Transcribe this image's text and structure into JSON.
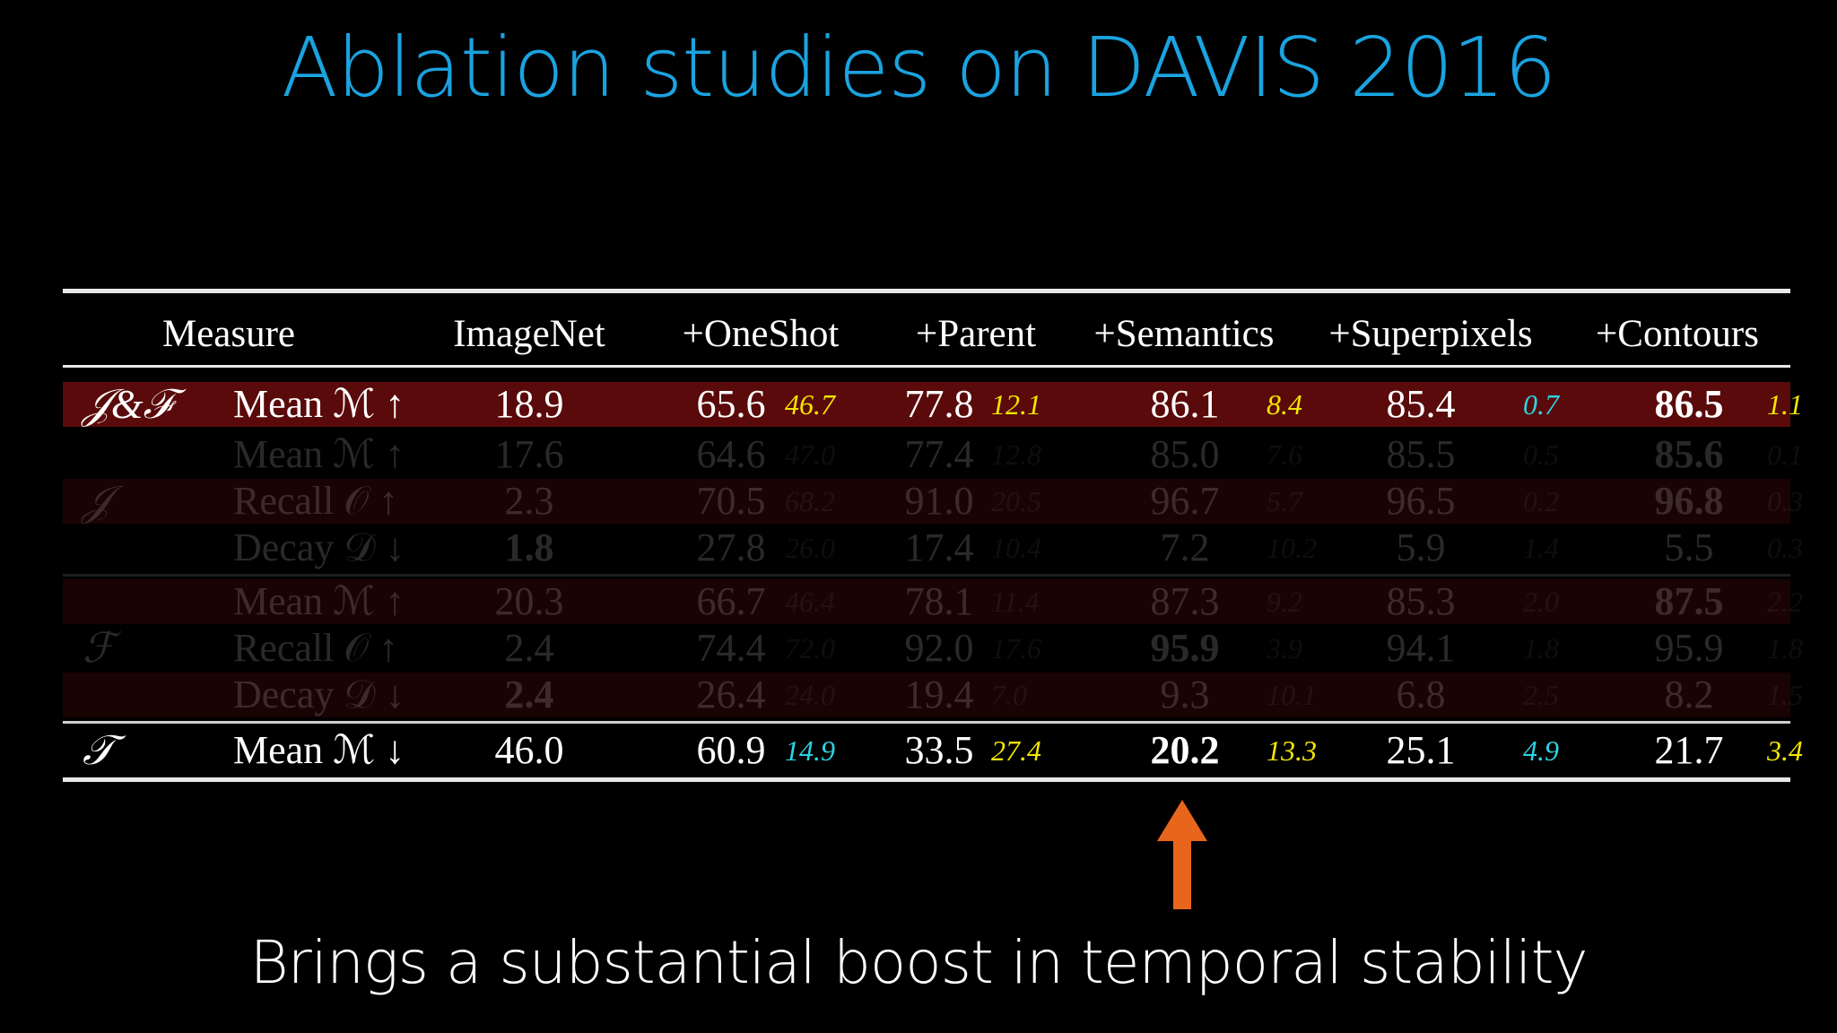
{
  "title": "Ablation studies on DAVIS 2016",
  "caption": "Brings a substantial boost in temporal stability",
  "colors": {
    "title": "#1aa3e0",
    "highlight_row": "#5a0a0a",
    "diff_yellow": "#f2e600",
    "diff_cyan": "#2bd4e4",
    "arrow": "#e8661c"
  },
  "icons": {
    "pointer": "up-arrow-icon"
  },
  "table": {
    "header": {
      "measure": "Measure",
      "columns": [
        "ImageNet",
        "+OneShot",
        "+Parent",
        "+Semantics",
        "+Superpixels",
        "+Contours"
      ]
    },
    "rows": [
      {
        "group": "𝒥&ℱ",
        "measure": "Mean ℳ ↑",
        "values": [
          "18.9",
          "65.6",
          "77.8",
          "86.1",
          "85.4",
          "86.5"
        ],
        "diffs": [
          "",
          "46.7",
          "12.1",
          "8.4",
          "0.7",
          "1.1"
        ]
      },
      {
        "group": "",
        "measure": "Mean ℳ ↑",
        "values": [
          "17.6",
          "64.6",
          "77.4",
          "85.0",
          "85.5",
          "85.6"
        ],
        "diffs": [
          "",
          "47.0",
          "12.8",
          "7.6",
          "0.5",
          "0.1"
        ]
      },
      {
        "group": "𝒥",
        "measure": "Recall 𝒪 ↑",
        "values": [
          "2.3",
          "70.5",
          "91.0",
          "96.7",
          "96.5",
          "96.8"
        ],
        "diffs": [
          "",
          "68.2",
          "20.5",
          "5.7",
          "0.2",
          "0.3"
        ]
      },
      {
        "group": "",
        "measure": "Decay 𝒟 ↓",
        "values": [
          "1.8",
          "27.8",
          "17.4",
          "7.2",
          "5.9",
          "5.5"
        ],
        "diffs": [
          "",
          "26.0",
          "10.4",
          "10.2",
          "1.4",
          "0.3"
        ]
      },
      {
        "group": "",
        "measure": "Mean ℳ ↑",
        "values": [
          "20.3",
          "66.7",
          "78.1",
          "87.3",
          "85.3",
          "87.5"
        ],
        "diffs": [
          "",
          "46.4",
          "11.4",
          "9.2",
          "2.0",
          "2.2"
        ]
      },
      {
        "group": "ℱ",
        "measure": "Recall 𝒪 ↑",
        "values": [
          "2.4",
          "74.4",
          "92.0",
          "95.9",
          "94.1",
          "95.9"
        ],
        "diffs": [
          "",
          "72.0",
          "17.6",
          "3.9",
          "1.8",
          "1.8"
        ]
      },
      {
        "group": "",
        "measure": "Decay 𝒟 ↓",
        "values": [
          "2.4",
          "26.4",
          "19.4",
          "9.3",
          "6.8",
          "8.2"
        ],
        "diffs": [
          "",
          "24.0",
          "7.0",
          "10.1",
          "2.5",
          "1.5"
        ]
      },
      {
        "group": "𝒯",
        "measure": "Mean ℳ ↓",
        "values": [
          "46.0",
          "60.9",
          "33.5",
          "20.2",
          "25.1",
          "21.7"
        ],
        "diffs": [
          "",
          "14.9",
          "27.4",
          "13.3",
          "4.9",
          "3.4"
        ]
      }
    ]
  }
}
